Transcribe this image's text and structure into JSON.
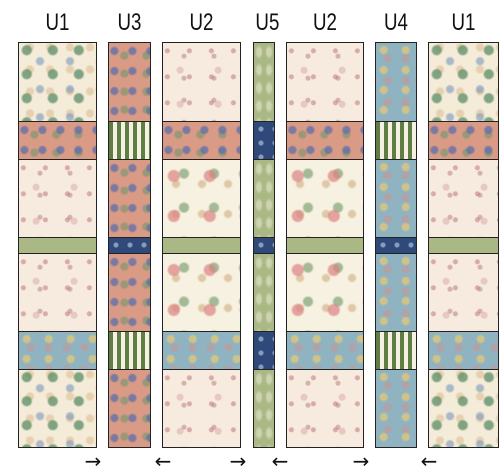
{
  "columns": [
    {
      "label": "U1",
      "segments": [
        "green-floral",
        "pink-floral",
        "toile",
        "sage",
        "toile",
        "blue-floral",
        "green-floral"
      ]
    },
    {
      "label": "U3",
      "segments": [
        "pink-floral",
        "stripe",
        "pink-floral",
        "navy",
        "pink-floral",
        "stripe",
        "pink-floral"
      ]
    },
    {
      "label": "U2",
      "segments": [
        "toile",
        "pink-floral",
        "wreath",
        "sage",
        "wreath",
        "blue-floral",
        "toile"
      ]
    },
    {
      "label": "U5",
      "segments": [
        "sage-fern",
        "navy",
        "sage-fern",
        "navy",
        "sage-fern",
        "navy",
        "sage-fern"
      ]
    },
    {
      "label": "U2",
      "segments": [
        "toile",
        "pink-floral",
        "wreath",
        "sage",
        "wreath",
        "blue-floral",
        "toile"
      ]
    },
    {
      "label": "U4",
      "segments": [
        "blue-floral",
        "stripe",
        "blue-floral",
        "navy",
        "blue-floral",
        "stripe",
        "blue-floral"
      ]
    },
    {
      "label": "U1",
      "segments": [
        "green-floral",
        "pink-floral",
        "toile",
        "sage",
        "toile",
        "blue-floral",
        "green-floral"
      ]
    }
  ],
  "arrows": [
    {
      "glyph": "→",
      "direction": "right"
    },
    {
      "glyph": "←",
      "direction": "left"
    },
    {
      "glyph": "→",
      "direction": "right"
    },
    {
      "glyph": "←",
      "direction": "left"
    },
    {
      "glyph": "→",
      "direction": "right"
    },
    {
      "glyph": "←",
      "direction": "left"
    }
  ]
}
